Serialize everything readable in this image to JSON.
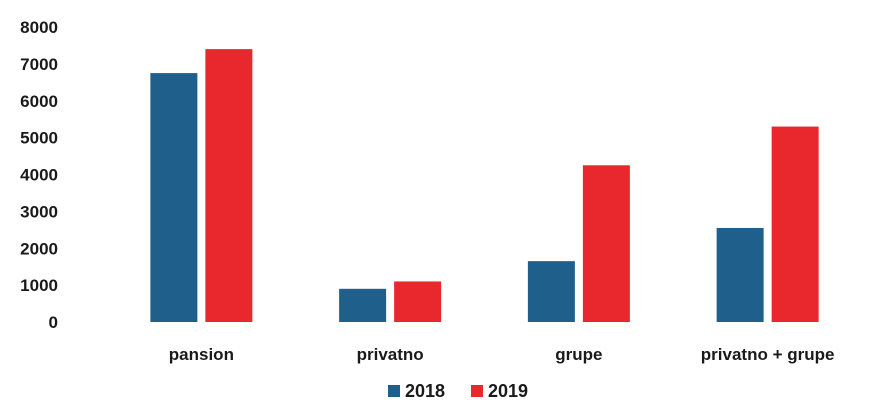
{
  "chart_data": {
    "type": "bar",
    "title": "",
    "xlabel": "",
    "ylabel": "",
    "categories": [
      "pansion",
      "privatno",
      "grupe",
      "privatno + grupe"
    ],
    "series": [
      {
        "name": "2018",
        "color": "#1f5f8b",
        "values": [
          6750,
          900,
          1650,
          2550
        ]
      },
      {
        "name": "2019",
        "color": "#e8282c",
        "values": [
          7400,
          1100,
          4250,
          5300
        ]
      }
    ],
    "ylim": [
      0,
      8000
    ],
    "yticks": [
      0,
      1000,
      2000,
      3000,
      4000,
      5000,
      6000,
      7000,
      8000
    ],
    "grid": false,
    "legend": "bottom-center"
  }
}
